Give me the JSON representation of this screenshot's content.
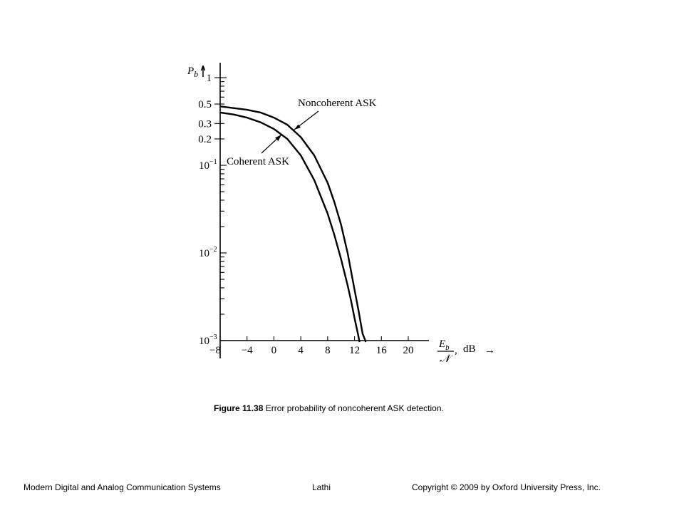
{
  "chart_data": {
    "type": "line",
    "yscale": "log",
    "xlim": [
      -8,
      23
    ],
    "ylim": [
      0.001,
      1
    ],
    "x_ticks": [
      -8,
      -4,
      0,
      4,
      8,
      12,
      16,
      20
    ],
    "y_tick_labels": [
      {
        "value": 1,
        "label": "1"
      },
      {
        "value": 0.5,
        "label": "0.5"
      },
      {
        "value": 0.3,
        "label": "0.3"
      },
      {
        "value": 0.2,
        "label": "0.2"
      }
    ],
    "y_decades": [
      {
        "value": 0.1,
        "base": "10",
        "exp": "−1"
      },
      {
        "value": 0.01,
        "base": "10",
        "exp": "−2"
      },
      {
        "value": 0.001,
        "base": "10",
        "exp": "−3"
      }
    ],
    "ylabel": {
      "main": "P",
      "sub": "b"
    },
    "xlabel": {
      "num_main": "E",
      "num_sub": "b",
      "den": "𝒩",
      "comma": ",",
      "unit": "dB",
      "arrow": "→"
    },
    "series": [
      {
        "name": "Noncoherent ASK",
        "x": [
          -8,
          -6,
          -4,
          -2,
          0,
          2,
          4,
          6,
          8,
          9,
          10,
          11,
          12,
          12.6,
          13.2,
          13.6
        ],
        "y": [
          0.47,
          0.45,
          0.43,
          0.4,
          0.35,
          0.29,
          0.21,
          0.13,
          0.063,
          0.038,
          0.021,
          0.0098,
          0.0038,
          0.0022,
          0.0012,
          0.001
        ]
      },
      {
        "name": "Coherent ASK",
        "x": [
          -8,
          -6,
          -4,
          -2,
          0,
          2,
          4,
          6,
          8,
          9,
          10,
          11,
          11.5,
          12,
          12.5,
          12.7
        ],
        "y": [
          0.4,
          0.38,
          0.35,
          0.31,
          0.26,
          0.2,
          0.13,
          0.068,
          0.028,
          0.016,
          0.0085,
          0.0042,
          0.0028,
          0.0018,
          0.0012,
          0.001
        ]
      }
    ],
    "annotations": [
      {
        "text": "Noncoherent ASK",
        "points_to": "Noncoherent ASK",
        "at": [
          2.6,
          0.26
        ]
      },
      {
        "text": "Coherent ASK",
        "points_to": "Coherent ASK",
        "at": [
          1.2,
          0.21
        ]
      }
    ]
  },
  "caption": {
    "bold": "Figure 11.38",
    "text": " Error probability of noncoherent ASK detection."
  },
  "footer": {
    "left": "Modern Digital and Analog Communication Systems",
    "center": "Lathi",
    "right": "Copyright © 2009 by Oxford University Press, Inc."
  }
}
